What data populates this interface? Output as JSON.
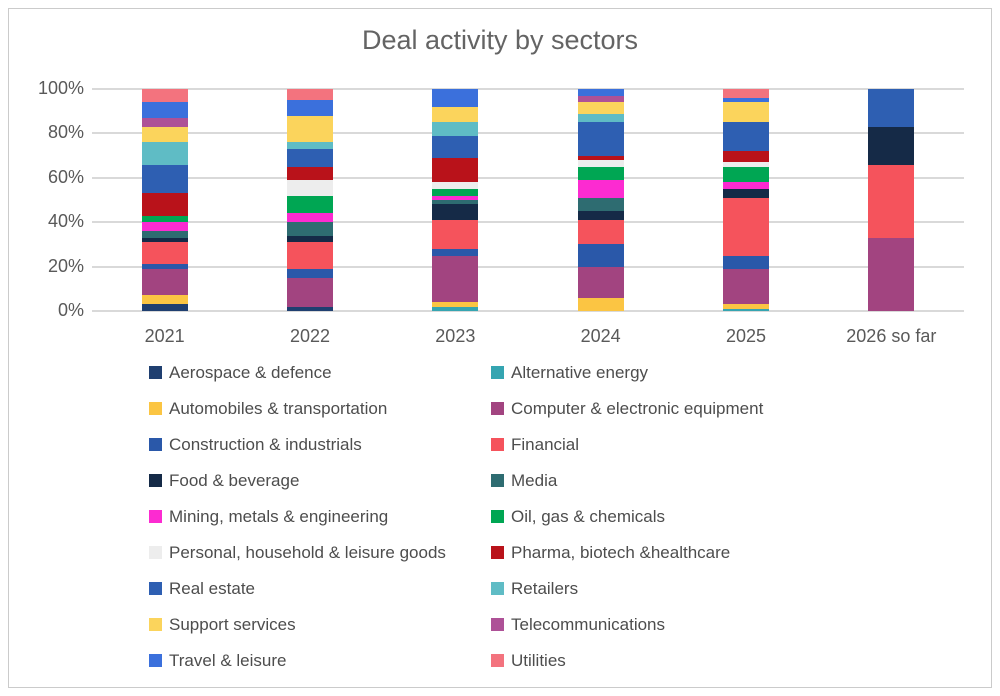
{
  "card": {
    "background": "#ffffff",
    "border_color": "#cbcbcb"
  },
  "chart_data": {
    "type": "bar",
    "subtype": "stacked_percent",
    "title": "Deal activity by sectors",
    "xlabel": "",
    "ylabel": "",
    "ylim": [
      0,
      100
    ],
    "unit": "%",
    "grid": true,
    "gridline_color": "#d9d9d9",
    "legend_position": "bottom",
    "categories": [
      "2021",
      "2022",
      "2023",
      "2024",
      "2025",
      "2026 so far"
    ],
    "y_ticks": [
      "100%",
      "80%",
      "60%",
      "40%",
      "20%",
      "0%"
    ],
    "series": [
      {
        "name": "Aerospace & defence",
        "color": "#1f3f70",
        "values": [
          3,
          2,
          0,
          0,
          0,
          0
        ]
      },
      {
        "name": "Alternative energy",
        "color": "#35a5b1",
        "values": [
          0,
          0,
          2,
          0,
          1,
          0
        ]
      },
      {
        "name": "Automobiles & transportation",
        "color": "#fbc543",
        "values": [
          4,
          0,
          2,
          6,
          2,
          0
        ]
      },
      {
        "name": "Computer & electronic equipment",
        "color": "#a24480",
        "values": [
          12,
          13,
          21,
          14,
          16,
          33
        ]
      },
      {
        "name": "Construction & industrials",
        "color": "#2a58a9",
        "values": [
          2,
          4,
          3,
          10,
          6,
          0
        ]
      },
      {
        "name": "Financial",
        "color": "#f5535c",
        "values": [
          10,
          12,
          13,
          11,
          26,
          33
        ]
      },
      {
        "name": "Food & beverage",
        "color": "#152a47",
        "values": [
          2,
          3,
          7,
          4,
          4,
          17
        ]
      },
      {
        "name": "Media",
        "color": "#2e6c71",
        "values": [
          3,
          6,
          2,
          6,
          0,
          0
        ]
      },
      {
        "name": "Mining, metals & engineering",
        "color": "#fc2bd1",
        "values": [
          4,
          4,
          2,
          8,
          3,
          0
        ]
      },
      {
        "name": "Oil, gas & chemicals",
        "color": "#00a653",
        "values": [
          3,
          8,
          3,
          6,
          7,
          0
        ]
      },
      {
        "name": "Personal, household & leisure goods",
        "color": "#ededed",
        "values": [
          0,
          7,
          3,
          3,
          2,
          0
        ]
      },
      {
        "name": "Pharma, biotech &healthcare",
        "color": "#b9121a",
        "values": [
          10,
          6,
          11,
          2,
          5,
          0
        ]
      },
      {
        "name": "Real estate",
        "color": "#2e5fb2",
        "values": [
          13,
          8,
          10,
          15,
          13,
          17
        ]
      },
      {
        "name": "Retailers",
        "color": "#5fbcc5",
        "values": [
          10,
          3,
          6,
          4,
          0,
          0
        ]
      },
      {
        "name": "Support services",
        "color": "#fbd45c",
        "values": [
          7,
          12,
          7,
          5,
          9,
          0
        ]
      },
      {
        "name": "Telecommunications",
        "color": "#ae5197",
        "values": [
          4,
          0,
          0,
          3,
          0,
          0
        ]
      },
      {
        "name": "Travel & leisure",
        "color": "#3b70dc",
        "values": [
          7,
          7,
          8,
          3,
          2,
          0
        ]
      },
      {
        "name": "Utilities",
        "color": "#f3737e",
        "values": [
          6,
          5,
          0,
          0,
          4,
          0
        ]
      }
    ]
  }
}
